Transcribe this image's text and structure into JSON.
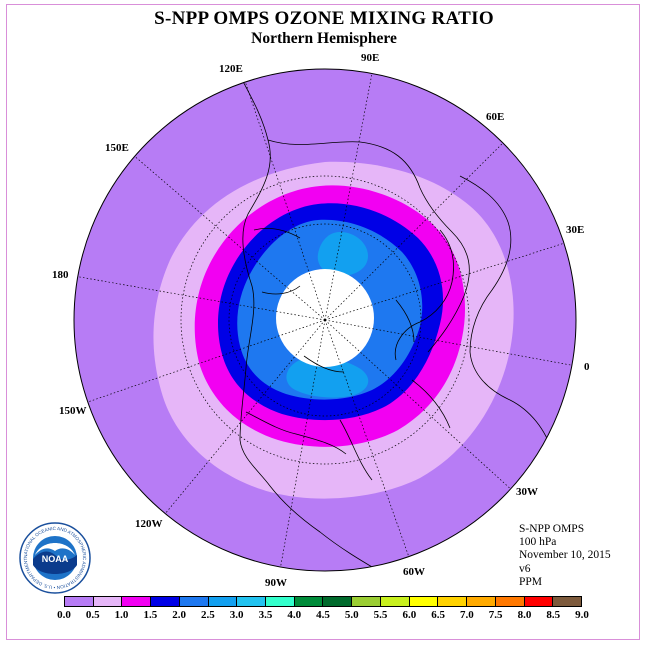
{
  "title": "S-NPP OMPS OZONE MIXING RATIO",
  "subtitle": "Northern Hemisphere",
  "info": {
    "instrument": "S-NPP OMPS",
    "level": "100 hPa",
    "date": "November 10, 2015",
    "version": "v6",
    "units": "PPM"
  },
  "longitude_labels": [
    "90E",
    "60E",
    "30E",
    "0",
    "30W",
    "60W",
    "90W",
    "120W",
    "150W",
    "180",
    "150E",
    "120E"
  ],
  "logo": {
    "text": "NOAA",
    "ring_text": "NATIONAL OCEANIC AND ATMOSPHERIC ADMINISTRATION • U.S. DEPARTMENT OF COMMERCE"
  },
  "colorbar": {
    "ticks": [
      "0.0",
      "0.5",
      "1.0",
      "1.5",
      "2.0",
      "2.5",
      "3.0",
      "3.5",
      "4.0",
      "4.5",
      "5.0",
      "5.5",
      "6.0",
      "6.5",
      "7.0",
      "7.5",
      "8.0",
      "8.5",
      "9.0"
    ],
    "colors": [
      "#b77cf5",
      "#e6b6f8",
      "#f200f2",
      "#0000e6",
      "#1e78f0",
      "#12a0f0",
      "#22c3f0",
      "#33ffcc",
      "#008c3a",
      "#006a2c",
      "#9acd32",
      "#c8f01e",
      "#ffff00",
      "#ffd200",
      "#ffaa00",
      "#ff7800",
      "#ff0000",
      "#7d5a3c"
    ]
  },
  "map": {
    "outer_color": "#b77cf5",
    "band_colors": [
      "#e6b6f8",
      "#f200f2",
      "#0000e6",
      "#1e78f0",
      "#12a0f0"
    ],
    "polar_gap_color": "#ffffff"
  }
}
